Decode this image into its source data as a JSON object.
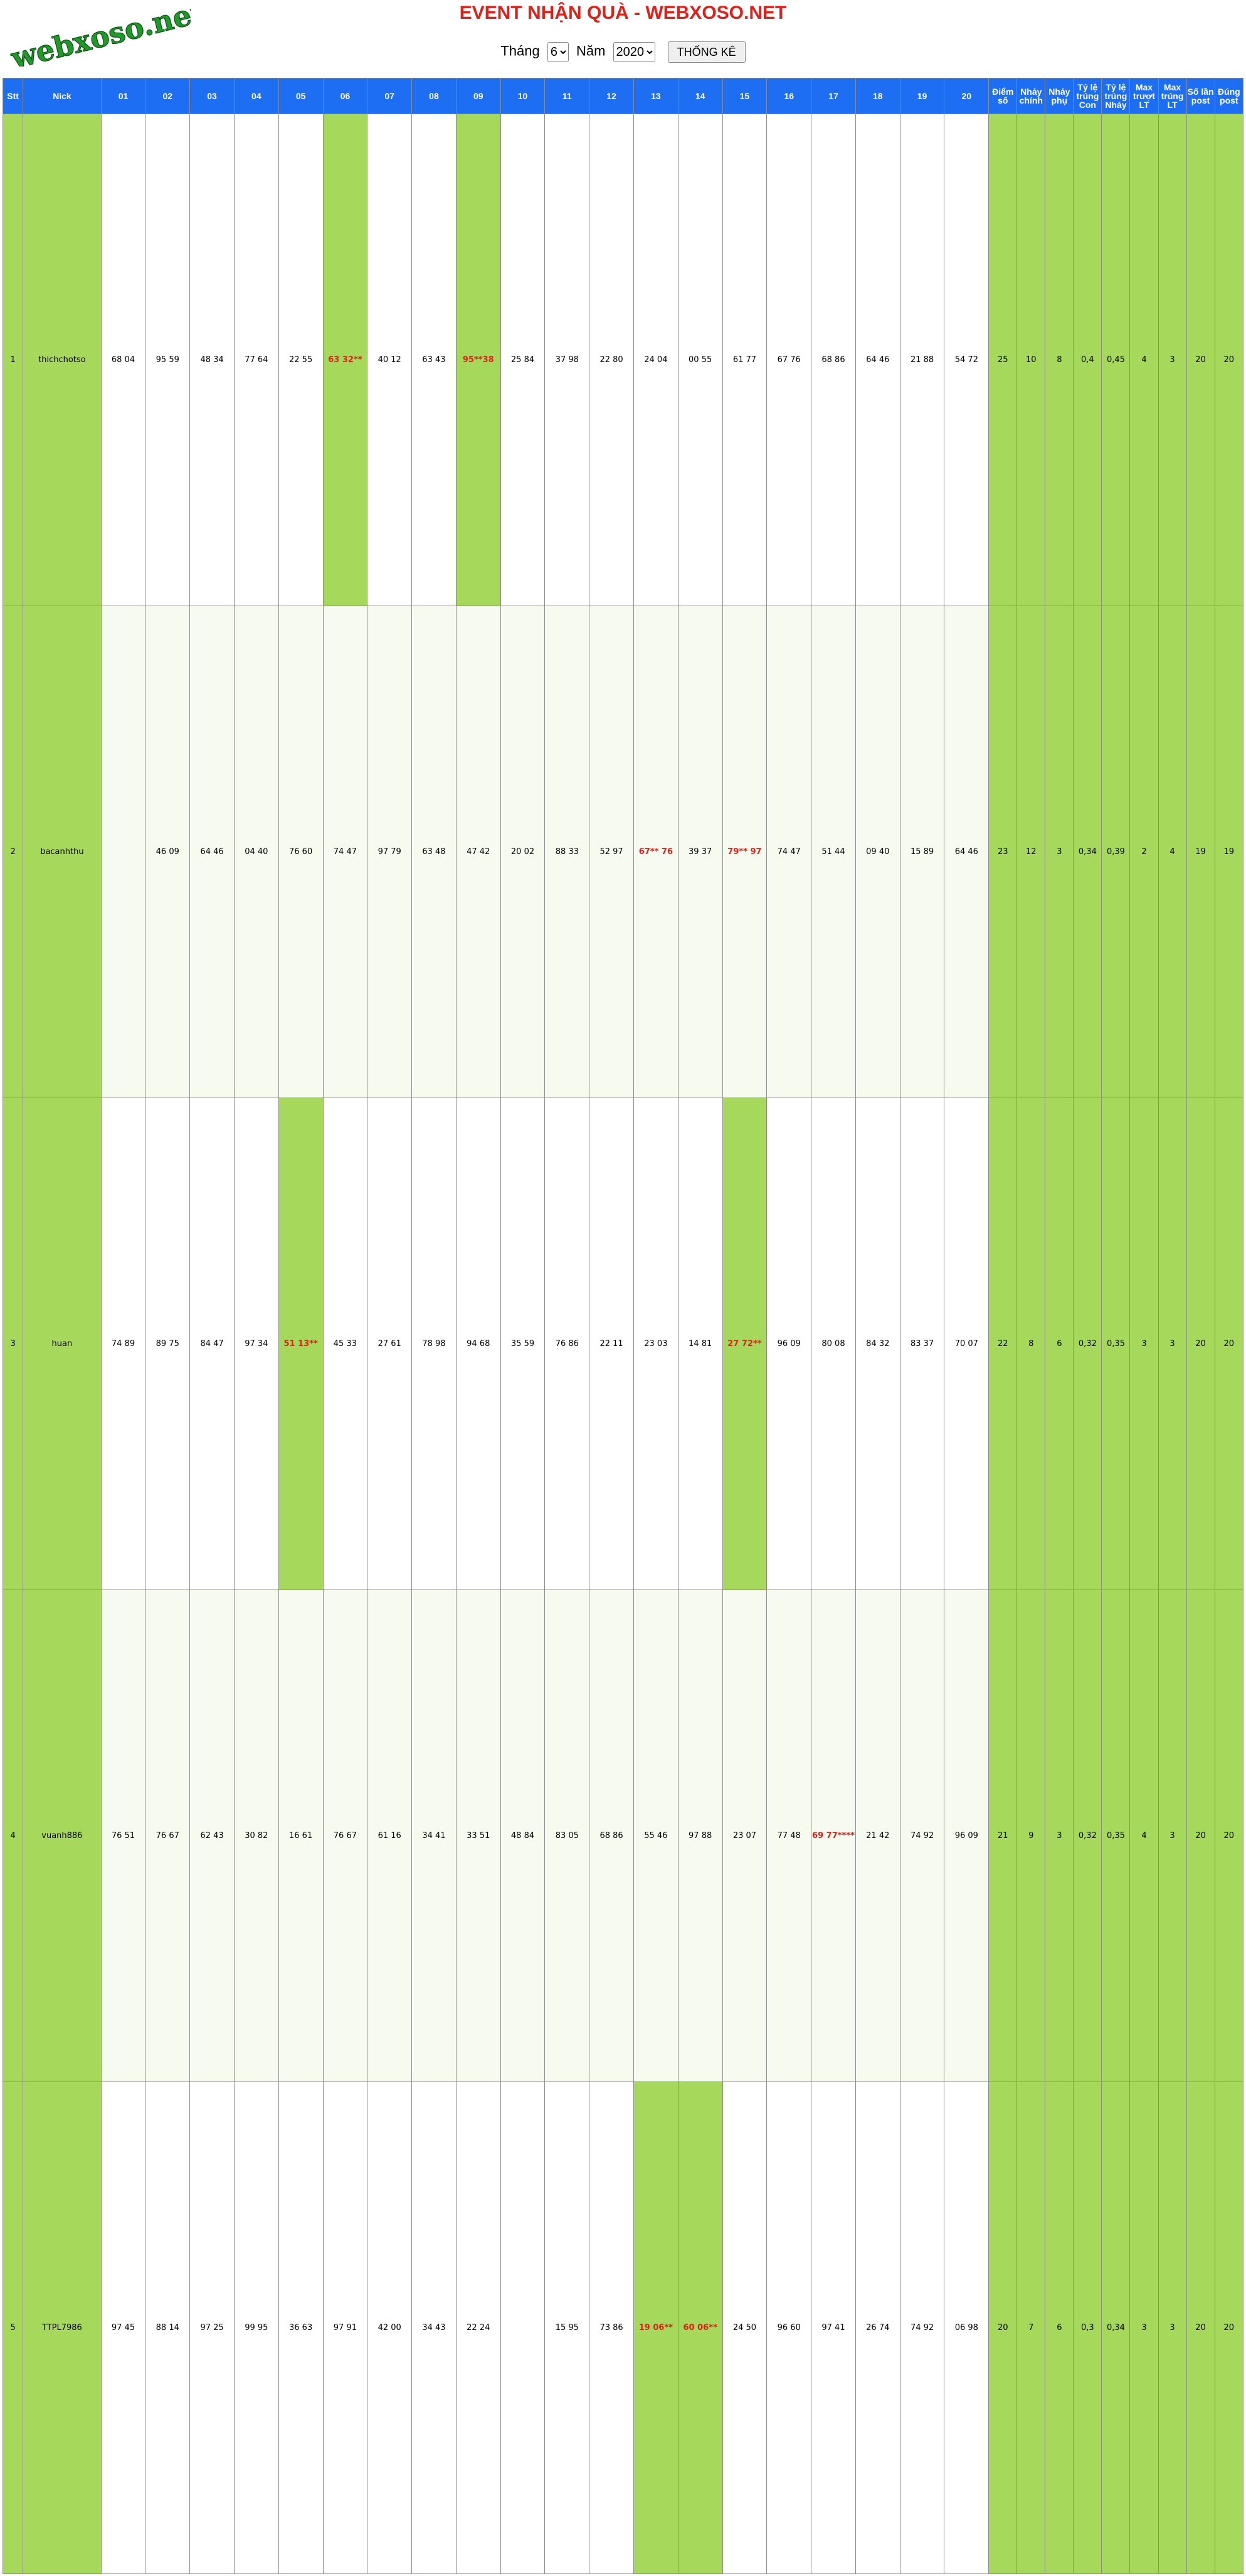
{
  "header": {
    "logo_text": "webxoso.net",
    "title": "EVENT NHẬN QUÀ - WEBXOSO.NET",
    "month_label": "Tháng",
    "month_value": "6",
    "year_label": "Năm",
    "year_value": "2020",
    "submit_label": "THỐNG KÊ"
  },
  "table": {
    "columns": [
      "Stt",
      "Nick",
      "01",
      "02",
      "03",
      "04",
      "05",
      "06",
      "07",
      "08",
      "09",
      "10",
      "11",
      "12",
      "13",
      "14",
      "15",
      "16",
      "17",
      "18",
      "19",
      "20",
      "Điểm số",
      "Nhảy chính",
      "Nhảy phụ",
      "Tỷ lệ trúng Con",
      "Tỷ lệ trúng Nháy",
      "Max trượt LT",
      "Max trúng LT",
      "Số lần post",
      "Đúng post"
    ],
    "rows": [
      {
        "stt": "1",
        "nick": "thichchotso",
        "cells": [
          "68 04",
          "95 59",
          "48 34",
          "77 64",
          "22 55",
          "63 32**",
          "40 12",
          "63 43",
          "95**38",
          "25 84",
          "37 98",
          "22 80",
          "24 04",
          "00 55",
          "61 77",
          "67 76",
          "68 86",
          "64 46",
          "21 88",
          "54 72"
        ],
        "stats": [
          "25",
          "10",
          "8",
          "0,4",
          "0,45",
          "4",
          "3",
          "20",
          "20"
        ]
      },
      {
        "stt": "2",
        "nick": "bacanhthu",
        "cells": [
          "",
          "46 09",
          "64 46",
          "04 40",
          "76 60",
          "74 47",
          "97 79",
          "63 48",
          "47 42",
          "20 02",
          "88 33",
          "52 97",
          "67** 76",
          "39 37",
          "79** 97",
          "74 47",
          "51 44",
          "09 40",
          "15 89",
          "64 46"
        ],
        "stats": [
          "23",
          "12",
          "3",
          "0,34",
          "0,39",
          "2",
          "4",
          "19",
          "19"
        ]
      },
      {
        "stt": "3",
        "nick": "huan",
        "cells": [
          "74 89",
          "89 75",
          "84 47",
          "97 34",
          "51 13**",
          "45 33",
          "27 61",
          "78 98",
          "94 68",
          "35 59",
          "76 86",
          "22 11",
          "23 03",
          "14 81",
          "27 72**",
          "96 09",
          "80 08",
          "84 32",
          "83 37",
          "70 07"
        ],
        "stats": [
          "22",
          "8",
          "6",
          "0,32",
          "0,35",
          "3",
          "3",
          "20",
          "20"
        ]
      },
      {
        "stt": "4",
        "nick": "vuanh886",
        "cells": [
          "76 51",
          "76 67",
          "62 43",
          "30 82",
          "16 61",
          "76 67",
          "61 16",
          "34 41",
          "33 51",
          "48 84",
          "83 05",
          "68 86",
          "55 46",
          "97 88",
          "23 07",
          "77 48",
          "69 77****",
          "21 42",
          "74 92",
          "96 09"
        ],
        "stats": [
          "21",
          "9",
          "3",
          "0,32",
          "0,35",
          "4",
          "3",
          "20",
          "20"
        ]
      },
      {
        "stt": "5",
        "nick": "TTPL7986",
        "cells": [
          "97 45",
          "88 14",
          "97 25",
          "99 95",
          "36 63",
          "97 91",
          "42 00",
          "34 43",
          "22 24",
          "",
          "15 95",
          "73 86",
          "19 06**",
          "60 06**",
          "24 50",
          "96 60",
          "97 41",
          "26 74",
          "74 92",
          "06 98"
        ],
        "stats": [
          "20",
          "7",
          "6",
          "0,3",
          "0,34",
          "3",
          "3",
          "20",
          "20"
        ]
      }
    ],
    "stats_hit_cells": 0
  }
}
